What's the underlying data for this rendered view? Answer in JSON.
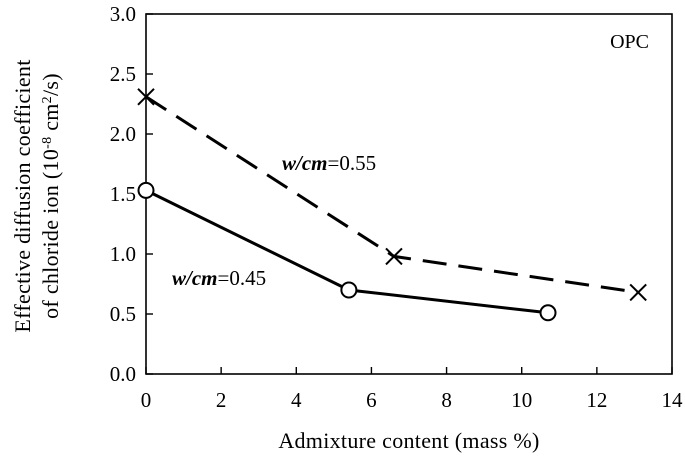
{
  "chart_data": {
    "type": "line",
    "title": "",
    "xlabel": "Admixture content (mass %)",
    "ylabel_line1": "Effective diffusion coefficient",
    "ylabel_line2_prefix": "of chloride ion (10",
    "ylabel_line2_exp": "-8",
    "ylabel_line2_mid": " cm",
    "ylabel_line2_exp2": "2",
    "ylabel_line2_suffix": "/s)",
    "xlim": [
      0,
      14
    ],
    "ylim": [
      0.0,
      3.0
    ],
    "x_ticks": [
      "0",
      "2",
      "4",
      "6",
      "8",
      "10",
      "12",
      "14"
    ],
    "y_ticks": [
      "0.0",
      "0.5",
      "1.0",
      "1.5",
      "2.0",
      "2.5",
      "3.0"
    ],
    "panel_label": "OPC",
    "grid": false,
    "series": [
      {
        "label_var": "w/cm",
        "label_value": "=0.55",
        "marker": "x",
        "line_style": "dashed",
        "x": [
          0,
          6.6,
          13.1
        ],
        "y": [
          2.31,
          0.98,
          0.68
        ]
      },
      {
        "label_var": "w/cm",
        "label_value": "=0.45",
        "marker": "circle",
        "line_style": "solid",
        "x": [
          0,
          5.4,
          10.7
        ],
        "y": [
          1.53,
          0.7,
          0.51
        ]
      }
    ]
  }
}
